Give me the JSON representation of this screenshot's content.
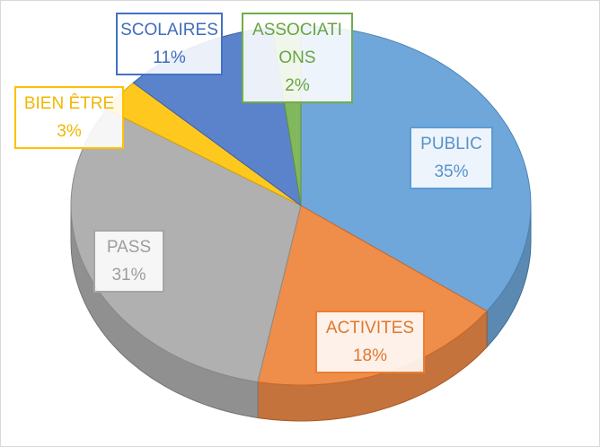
{
  "chart_data": {
    "type": "pie",
    "categories": [
      "PUBLIC",
      "ACTIVITES",
      "PASS",
      "BIEN ÊTRE",
      "SCOLAIRES",
      "ASSOCIATIONS"
    ],
    "values": [
      35,
      18,
      31,
      3,
      11,
      2
    ],
    "value_labels": [
      "35%",
      "18%",
      "31%",
      "3%",
      "11%",
      "2%"
    ],
    "colors": [
      "#5b9bd5",
      "#ed7d31",
      "#a5a5a5",
      "#ffc000",
      "#4472c4",
      "#70ad47"
    ]
  }
}
